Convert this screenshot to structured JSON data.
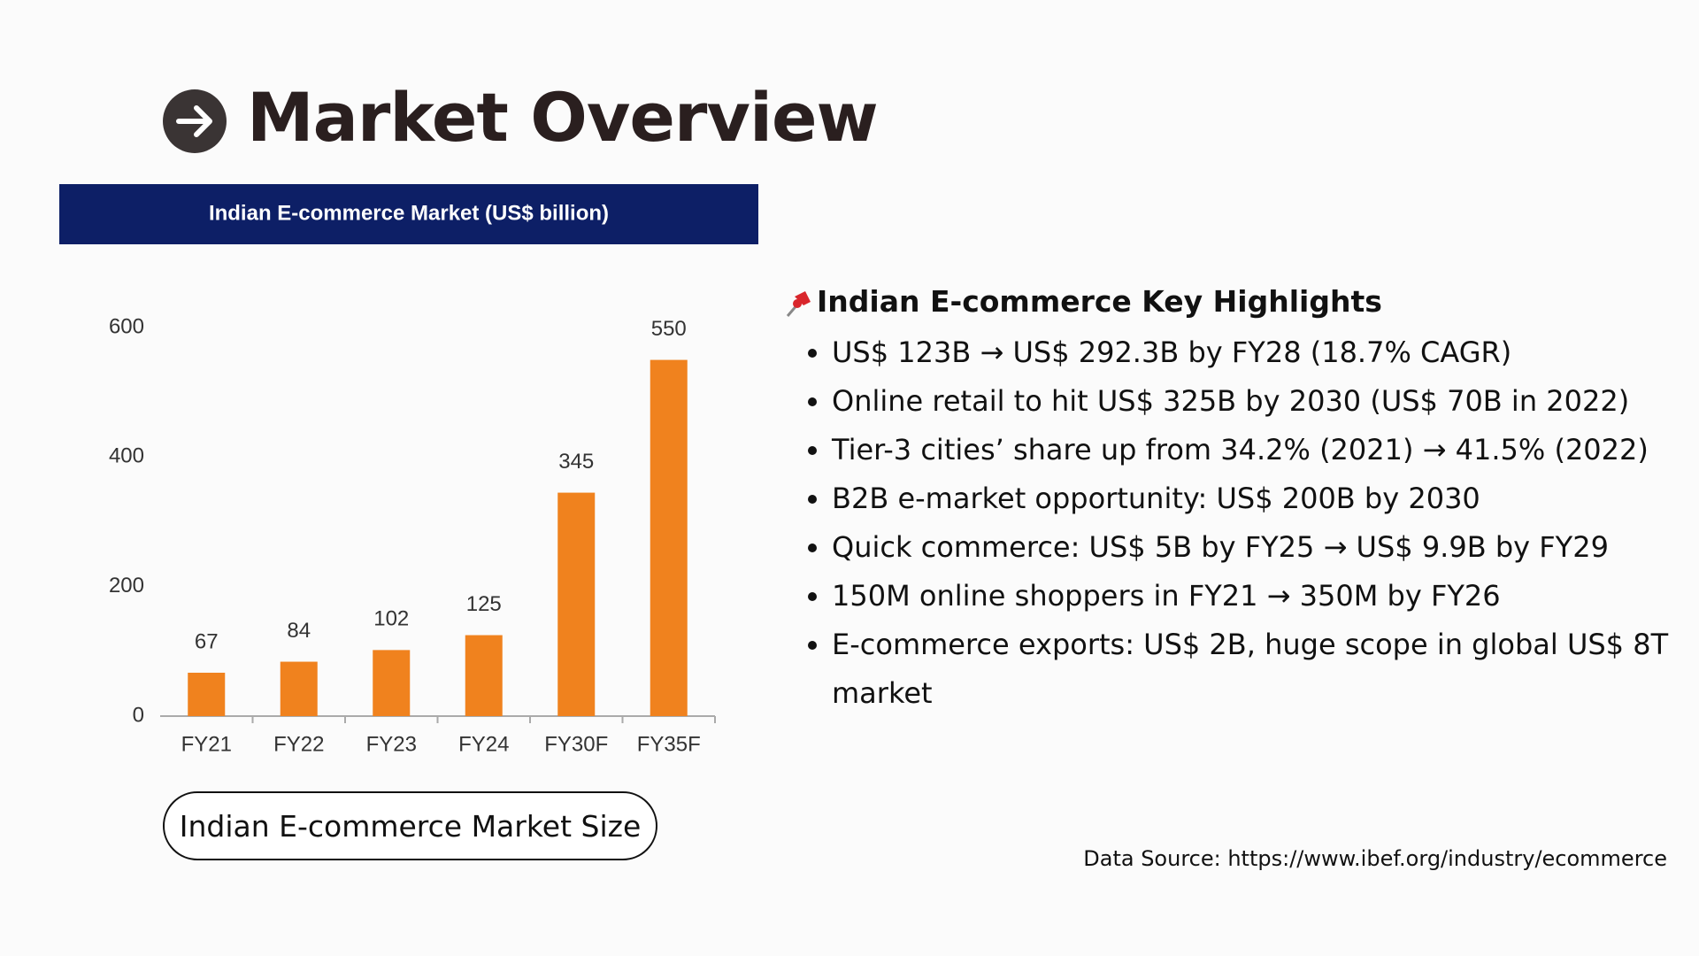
{
  "header": {
    "title": "Market Overview"
  },
  "chart_data": {
    "type": "bar",
    "title": "Indian E-commerce Market (US$ billion)",
    "categories": [
      "FY21",
      "FY22",
      "FY23",
      "FY24",
      "FY30F",
      "FY35F"
    ],
    "values": [
      67,
      84,
      102,
      125,
      345,
      550
    ],
    "color": "#f0821e",
    "ylim": [
      0,
      600
    ],
    "yticks": [
      0,
      200,
      400,
      600
    ],
    "grid": false,
    "caption": "Indian E-commerce Market Size"
  },
  "highlights": {
    "title": "Indian E-commerce Key Highlights",
    "items": [
      "US$ 123B → US$ 292.3B by FY28 (18.7% CAGR)",
      "Online retail to hit US$ 325B by 2030 (US$ 70B in 2022)",
      "Tier-3 cities’ share up from 34.2% (2021) → 41.5% (2022)",
      "B2B e-market opportunity: US$ 200B by 2030",
      "Quick commerce: US$ 5B by FY25 → US$ 9.9B by FY29",
      "150M online shoppers in FY21 → 350M by FY26",
      "E-commerce exports: US$ 2B, huge scope in global US$ 8T market"
    ]
  },
  "source": "Data Source: https://www.ibef.org/industry/ecommerce"
}
